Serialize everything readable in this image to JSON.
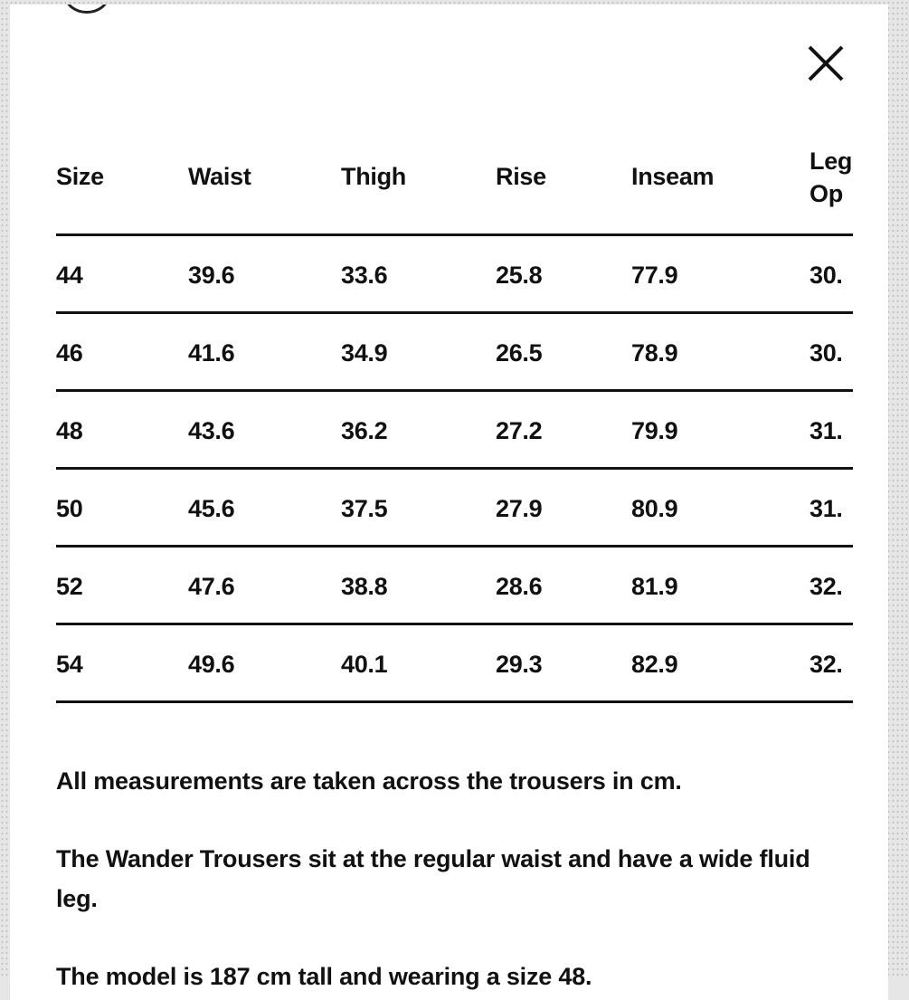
{
  "close_icon": "close-icon",
  "table": {
    "headers": [
      "Size",
      "Waist",
      "Thigh",
      "Rise",
      "Inseam",
      "Leg\nOp"
    ],
    "rows": [
      [
        "44",
        "39.6",
        "33.6",
        "25.8",
        "77.9",
        "30."
      ],
      [
        "46",
        "41.6",
        "34.9",
        "26.5",
        "78.9",
        "30."
      ],
      [
        "48",
        "43.6",
        "36.2",
        "27.2",
        "79.9",
        "31."
      ],
      [
        "50",
        "45.6",
        "37.5",
        "27.9",
        "80.9",
        "31."
      ],
      [
        "52",
        "47.6",
        "38.8",
        "28.6",
        "81.9",
        "32."
      ],
      [
        "54",
        "49.6",
        "40.1",
        "29.3",
        "82.9",
        "32."
      ]
    ]
  },
  "notes": [
    "All measurements are taken across the trousers in cm.",
    "The Wander Trousers sit at the regular waist and have a wide fluid leg.",
    "The model is 187 cm tall and wearing a size 48."
  ]
}
